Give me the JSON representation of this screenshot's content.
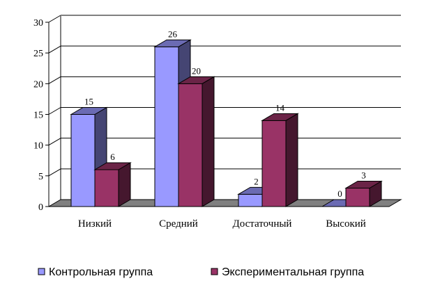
{
  "chart_data": {
    "type": "bar",
    "title": "",
    "xlabel": "",
    "ylabel": "",
    "categories": [
      "Низкий",
      "Средний",
      "Достаточный",
      "Высокий"
    ],
    "series": [
      {
        "name": "Контрольная группа",
        "values": [
          15,
          26,
          2,
          0
        ],
        "color": "#9999ff"
      },
      {
        "name": "Экспериментальная группа",
        "values": [
          6,
          20,
          14,
          3
        ],
        "color": "#993366"
      }
    ],
    "ylim": [
      0,
      30
    ],
    "yticks": [
      0,
      5,
      10,
      15,
      20,
      25,
      30
    ],
    "grid": true,
    "legend": "bottom",
    "style": "3d-clustered-column"
  }
}
